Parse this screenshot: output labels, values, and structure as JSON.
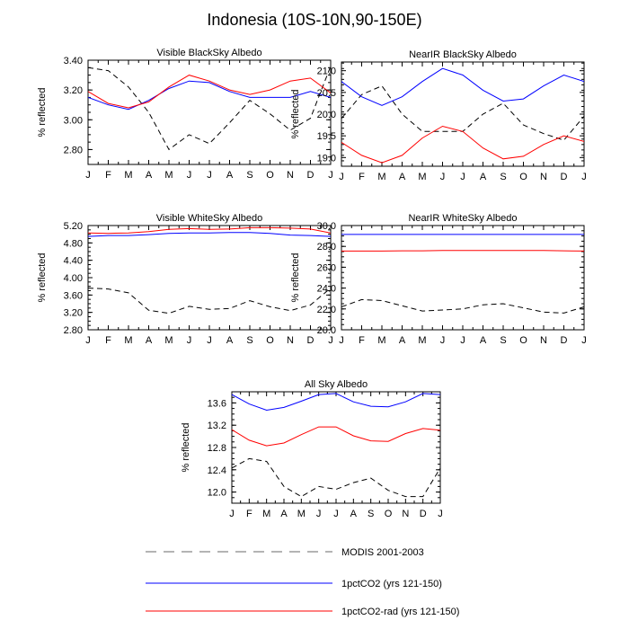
{
  "title": "Indonesia (10S-10N,90-150E)",
  "legend": [
    {
      "name": "MODIS 2001-2003",
      "color": "#000000",
      "dash": true
    },
    {
      "name": "1pctCO2 (yrs 121-150)",
      "color": "#0000ff",
      "dash": false
    },
    {
      "name": "1pctCO2-rad (yrs 121-150)",
      "color": "#ff0000",
      "dash": false
    }
  ],
  "chart_data": [
    {
      "type": "line",
      "title": "Visible BlackSky Albedo",
      "ylabel": "% reflected",
      "categories": [
        "J",
        "F",
        "M",
        "A",
        "M",
        "J",
        "J",
        "A",
        "S",
        "O",
        "N",
        "D",
        "J"
      ],
      "ylim": [
        2.7,
        3.4
      ],
      "yticks": [
        2.8,
        3.0,
        3.2,
        3.4
      ],
      "ytick_labels": [
        "2.80",
        "3.00",
        "3.20",
        "3.40"
      ],
      "series": [
        {
          "name": "MODIS 2001-2003",
          "values": [
            3.35,
            3.33,
            3.22,
            3.05,
            2.8,
            2.9,
            2.84,
            2.98,
            3.13,
            3.04,
            2.93,
            3.01,
            3.36
          ]
        },
        {
          "name": "1pctCO2 (yrs 121-150)",
          "values": [
            3.15,
            3.1,
            3.07,
            3.13,
            3.21,
            3.26,
            3.25,
            3.19,
            3.15,
            3.15,
            3.15,
            3.19,
            3.15
          ]
        },
        {
          "name": "1pctCO2-rad (yrs 121-150)",
          "values": [
            3.19,
            3.11,
            3.08,
            3.12,
            3.22,
            3.3,
            3.26,
            3.2,
            3.17,
            3.2,
            3.26,
            3.28,
            3.18
          ]
        }
      ]
    },
    {
      "type": "line",
      "title": "NearIR BlackSky Albedo",
      "ylabel": "% reflected",
      "categories": [
        "J",
        "F",
        "M",
        "A",
        "M",
        "J",
        "J",
        "A",
        "S",
        "O",
        "N",
        "D",
        "J"
      ],
      "ylim": [
        18.8,
        21.2
      ],
      "yticks": [
        19.0,
        19.5,
        20.0,
        20.5,
        21.0
      ],
      "ytick_labels": [
        "19.0",
        "19.5",
        "20.0",
        "20.5",
        "21.0"
      ],
      "series": [
        {
          "name": "MODIS 2001-2003",
          "values": [
            19.9,
            20.45,
            20.65,
            20.0,
            19.6,
            19.6,
            19.6,
            20.0,
            20.25,
            19.75,
            19.55,
            19.4,
            19.95
          ]
        },
        {
          "name": "1pctCO2 (yrs 121-150)",
          "values": [
            20.75,
            20.4,
            20.2,
            20.4,
            20.75,
            21.05,
            20.9,
            20.55,
            20.3,
            20.35,
            20.65,
            20.9,
            20.75
          ]
        },
        {
          "name": "1pctCO2-rad (yrs 121-150)",
          "values": [
            19.35,
            19.05,
            18.88,
            19.05,
            19.45,
            19.72,
            19.6,
            19.22,
            18.97,
            19.03,
            19.3,
            19.5,
            19.37
          ]
        }
      ]
    },
    {
      "type": "line",
      "title": "Visible WhiteSky Albedo",
      "ylabel": "% reflected",
      "categories": [
        "J",
        "F",
        "M",
        "A",
        "M",
        "J",
        "J",
        "A",
        "S",
        "O",
        "N",
        "D",
        "J"
      ],
      "ylim": [
        2.8,
        5.2
      ],
      "yticks": [
        2.8,
        3.2,
        3.6,
        4.0,
        4.4,
        4.8,
        5.2
      ],
      "ytick_labels": [
        "2.80",
        "3.20",
        "3.60",
        "4.00",
        "4.40",
        "4.80",
        "5.20"
      ],
      "series": [
        {
          "name": "MODIS 2001-2003",
          "values": [
            3.76,
            3.74,
            3.65,
            3.25,
            3.18,
            3.34,
            3.27,
            3.29,
            3.47,
            3.33,
            3.24,
            3.37,
            3.76
          ]
        },
        {
          "name": "1pctCO2 (yrs 121-150)",
          "values": [
            4.95,
            4.97,
            4.97,
            4.99,
            5.02,
            5.03,
            5.03,
            5.04,
            5.04,
            5.02,
            4.98,
            4.97,
            4.95
          ]
        },
        {
          "name": "1pctCO2-rad (yrs 121-150)",
          "values": [
            5.03,
            5.02,
            5.03,
            5.06,
            5.11,
            5.13,
            5.11,
            5.12,
            5.15,
            5.15,
            5.14,
            5.12,
            5.03
          ]
        }
      ]
    },
    {
      "type": "line",
      "title": "NearIR WhiteSky Albedo",
      "ylabel": "% reflected",
      "categories": [
        "J",
        "F",
        "M",
        "A",
        "M",
        "J",
        "J",
        "A",
        "S",
        "O",
        "N",
        "D",
        "J"
      ],
      "ylim": [
        20.0,
        30.0
      ],
      "yticks": [
        20.0,
        22.0,
        24.0,
        26.0,
        28.0,
        30.0
      ],
      "ytick_labels": [
        "20.0",
        "22.0",
        "24.0",
        "26.0",
        "28.0",
        "30.0"
      ],
      "series": [
        {
          "name": "MODIS 2001-2003",
          "values": [
            22.2,
            22.9,
            22.8,
            22.3,
            21.8,
            21.9,
            22.0,
            22.4,
            22.5,
            22.1,
            21.7,
            21.6,
            22.2
          ]
        },
        {
          "name": "1pctCO2 (yrs 121-150)",
          "values": [
            29.15,
            29.15,
            29.15,
            29.15,
            29.15,
            29.15,
            29.15,
            29.15,
            29.15,
            29.15,
            29.15,
            29.15,
            29.15
          ]
        },
        {
          "name": "1pctCO2-rad (yrs 121-150)",
          "values": [
            27.55,
            27.55,
            27.55,
            27.58,
            27.58,
            27.6,
            27.6,
            27.6,
            27.6,
            27.6,
            27.6,
            27.58,
            27.55
          ]
        }
      ]
    },
    {
      "type": "line",
      "title": "All Sky Albedo",
      "ylabel": "% reflected",
      "categories": [
        "J",
        "F",
        "M",
        "A",
        "M",
        "J",
        "J",
        "A",
        "S",
        "O",
        "N",
        "D",
        "J"
      ],
      "ylim": [
        11.8,
        13.8
      ],
      "yticks": [
        12.0,
        12.4,
        12.8,
        13.2,
        13.6
      ],
      "ytick_labels": [
        "12.0",
        "12.4",
        "12.8",
        "13.2",
        "13.6"
      ],
      "series": [
        {
          "name": "MODIS 2001-2003",
          "values": [
            12.43,
            12.6,
            12.55,
            12.1,
            11.92,
            12.1,
            12.05,
            12.17,
            12.25,
            12.03,
            11.92,
            11.92,
            12.43
          ]
        },
        {
          "name": "1pctCO2 (yrs 121-150)",
          "values": [
            13.75,
            13.58,
            13.47,
            13.52,
            13.63,
            13.75,
            13.77,
            13.62,
            13.54,
            13.53,
            13.62,
            13.77,
            13.75
          ]
        },
        {
          "name": "1pctCO2-rad (yrs 121-150)",
          "values": [
            13.12,
            12.93,
            12.83,
            12.88,
            13.03,
            13.17,
            13.17,
            13.01,
            12.92,
            12.91,
            13.05,
            13.14,
            13.11
          ]
        }
      ]
    }
  ]
}
